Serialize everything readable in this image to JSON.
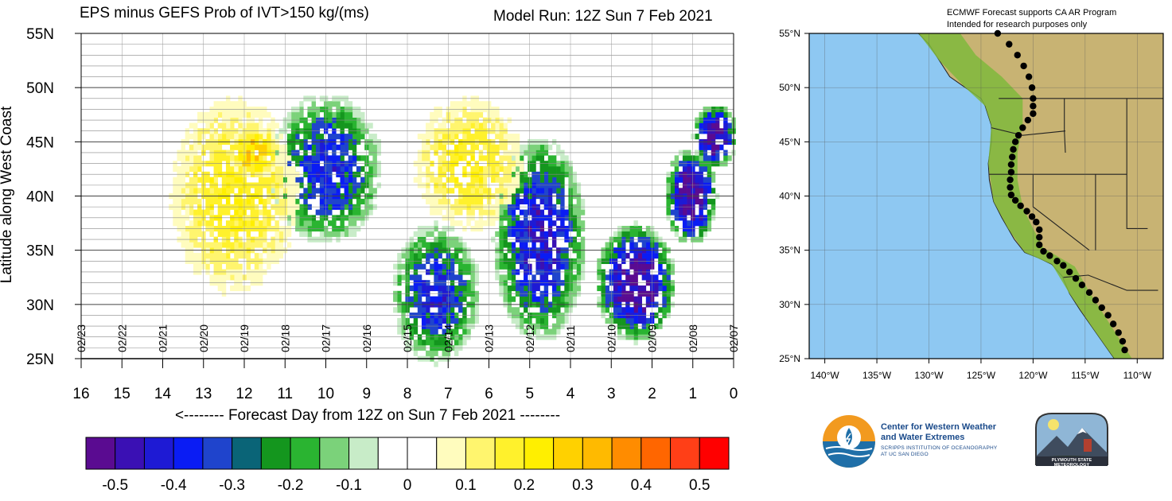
{
  "figure": {
    "left_title": "EPS minus GEFS Prob of IVT>150 kg/(ms)",
    "run_title": "Model Run: 12Z Sun 7 Feb 2021",
    "notice_line1": "ECMWF Forecast supports CA AR Program",
    "notice_line2": "Intended for research purposes only"
  },
  "chart_data": [
    {
      "type": "heatmap",
      "title": "EPS minus GEFS Prob of IVT>150 kg/(ms)",
      "subtitle": "Model Run: 12Z Sun 7 Feb 2021",
      "xlabel": "<-------- Forecast Day from 12Z on Sun 7 Feb 2021 --------",
      "ylabel": "Latitude along West Coast",
      "x_ticks": [
        "16",
        "15",
        "14",
        "13",
        "12",
        "11",
        "10",
        "9",
        "8",
        "7",
        "6",
        "5",
        "4",
        "3",
        "2",
        "1",
        "0"
      ],
      "x_reversed": true,
      "xlim": [
        16,
        0
      ],
      "y_ticks": [
        "25N",
        "30N",
        "35N",
        "40N",
        "45N",
        "50N",
        "55N"
      ],
      "ylim": [
        25,
        55
      ],
      "date_labels": [
        {
          "day": 16,
          "label": "02/23"
        },
        {
          "day": 15,
          "label": "02/22"
        },
        {
          "day": 14,
          "label": "02/21"
        },
        {
          "day": 13,
          "label": "02/20"
        },
        {
          "day": 12,
          "label": "02/19"
        },
        {
          "day": 11,
          "label": "02/18"
        },
        {
          "day": 10,
          "label": "02/17"
        },
        {
          "day": 9,
          "label": "02/16"
        },
        {
          "day": 8,
          "label": "02/15"
        },
        {
          "day": 7,
          "label": "02/14"
        },
        {
          "day": 6,
          "label": "02/13"
        },
        {
          "day": 5,
          "label": "02/12"
        },
        {
          "day": 4,
          "label": "02/11"
        },
        {
          "day": 3,
          "label": "02/10"
        },
        {
          "day": 2,
          "label": "02/09"
        },
        {
          "day": 1,
          "label": "02/08"
        },
        {
          "day": 0,
          "label": "02/07"
        }
      ],
      "colorbar": {
        "labels": [
          "-0.5",
          "-0.4",
          "-0.3",
          "-0.2",
          "-0.1",
          "0",
          "0.1",
          "0.2",
          "0.3",
          "0.4",
          "0.5"
        ],
        "colors": [
          "#5a0b91",
          "#3a10b4",
          "#1e1ad4",
          "#0a1cf4",
          "#1f44cc",
          "#0a6477",
          "#14961e",
          "#2ab431",
          "#7bd27a",
          "#c8ecc8",
          "#ffffff",
          "#ffffff",
          "#fffcbe",
          "#fff56e",
          "#fff12c",
          "#ffef00",
          "#ffd100",
          "#ffba00",
          "#ff8c00",
          "#ff6600",
          "#ff3f17",
          "#ff0000"
        ]
      },
      "features": [
        {
          "name": "green/blue band",
          "x": [
            4.0,
            5.5
          ],
          "y": [
            28,
            44
          ],
          "value": -0.4
        },
        {
          "name": "blue band",
          "x": [
            6.6,
            8.0
          ],
          "y": [
            26,
            36
          ],
          "value": -0.35
        },
        {
          "name": "blue cluster",
          "x": [
            9.0,
            11.0
          ],
          "y": [
            37,
            48
          ],
          "value": -0.35
        },
        {
          "name": "purple cluster",
          "x": [
            1.8,
            3.0
          ],
          "y": [
            28,
            36
          ],
          "value": -0.5
        },
        {
          "name": "purple streak",
          "x": [
            0.8,
            1.3
          ],
          "y": [
            37,
            43
          ],
          "value": -0.5
        },
        {
          "name": "purple dot",
          "x": [
            0.3,
            0.6
          ],
          "y": [
            44,
            47
          ],
          "value": -0.5
        },
        {
          "name": "yellow area",
          "x": [
            11.0,
            13.5
          ],
          "y": [
            32,
            48
          ],
          "value": 0.2
        },
        {
          "name": "yellow area",
          "x": [
            5.5,
            7.5
          ],
          "y": [
            38,
            48
          ],
          "value": 0.2
        },
        {
          "name": "orange spot",
          "x": [
            11.5,
            12.0
          ],
          "y": [
            43,
            45
          ],
          "value": 0.3
        }
      ]
    }
  ],
  "map": {
    "lat_labels": [
      "55°N",
      "50°N",
      "45°N",
      "40°N",
      "35°N",
      "30°N",
      "25°N"
    ],
    "lon_labels": [
      "140°W",
      "135°W",
      "130°W",
      "125°W",
      "120°W",
      "115°W",
      "110°W"
    ]
  },
  "logos": {
    "cw3e_line1": "Center for Western Weather",
    "cw3e_line2": "and Water Extremes",
    "cw3e_line3": "SCRIPPS INSTITUTION OF OCEANOGRAPHY",
    "cw3e_line4": "AT UC SAN DIEGO",
    "psu_text": "PLYMOUTH STATE METEOROLOGY"
  }
}
